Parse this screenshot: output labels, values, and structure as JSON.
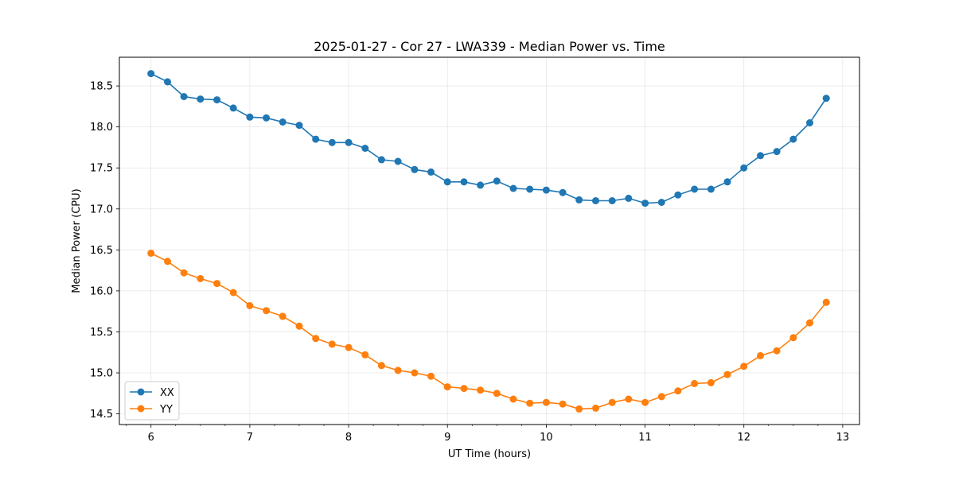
{
  "chart_data": {
    "type": "line",
    "title": "2025-01-27 - Cor 27 - LWA339 - Median Power vs. Time",
    "xlabel": "UT Time (hours)",
    "ylabel": "Median Power (CPU)",
    "xlim": [
      5.68,
      13.17
    ],
    "ylim": [
      14.37,
      18.85
    ],
    "grid": true,
    "legend_position": "lower-left",
    "x_ticks": [
      6,
      7,
      8,
      9,
      10,
      11,
      12,
      13
    ],
    "x_tick_labels": [
      "6",
      "7",
      "8",
      "9",
      "10",
      "11",
      "12",
      "13"
    ],
    "y_ticks": [
      14.5,
      15.0,
      15.5,
      16.0,
      16.5,
      17.0,
      17.5,
      18.0,
      18.5
    ],
    "y_tick_labels": [
      "14.5",
      "15.0",
      "15.5",
      "16.0",
      "16.5",
      "17.0",
      "17.5",
      "18.0",
      "18.5"
    ],
    "x": [
      6.0,
      6.167,
      6.333,
      6.5,
      6.667,
      6.833,
      7.0,
      7.167,
      7.333,
      7.5,
      7.667,
      7.833,
      8.0,
      8.167,
      8.333,
      8.5,
      8.667,
      8.833,
      9.0,
      9.167,
      9.333,
      9.5,
      9.667,
      9.833,
      10.0,
      10.167,
      10.333,
      10.5,
      10.667,
      10.833,
      11.0,
      11.167,
      11.333,
      11.5,
      11.667,
      11.833,
      12.0,
      12.167,
      12.333,
      12.5,
      12.667,
      12.833
    ],
    "series": [
      {
        "name": "XX",
        "color": "#1f77b4",
        "values": [
          18.65,
          18.55,
          18.37,
          18.34,
          18.33,
          18.23,
          18.12,
          18.11,
          18.06,
          18.02,
          17.85,
          17.81,
          17.81,
          17.74,
          17.6,
          17.58,
          17.48,
          17.45,
          17.33,
          17.33,
          17.29,
          17.34,
          17.25,
          17.24,
          17.23,
          17.2,
          17.11,
          17.1,
          17.1,
          17.13,
          17.07,
          17.08,
          17.17,
          17.24,
          17.24,
          17.33,
          17.5,
          17.65,
          17.7,
          17.85,
          18.05,
          18.35
        ]
      },
      {
        "name": "YY",
        "color": "#ff7f0e",
        "values": [
          16.46,
          16.36,
          16.22,
          16.15,
          16.09,
          15.98,
          15.82,
          15.76,
          15.69,
          15.57,
          15.42,
          15.35,
          15.31,
          15.22,
          15.09,
          15.03,
          15.0,
          14.96,
          14.83,
          14.81,
          14.79,
          14.75,
          14.68,
          14.63,
          14.64,
          14.62,
          14.56,
          14.57,
          14.64,
          14.68,
          14.64,
          14.71,
          14.78,
          14.87,
          14.88,
          14.98,
          15.08,
          15.21,
          15.27,
          15.43,
          15.61,
          15.86
        ]
      }
    ]
  }
}
